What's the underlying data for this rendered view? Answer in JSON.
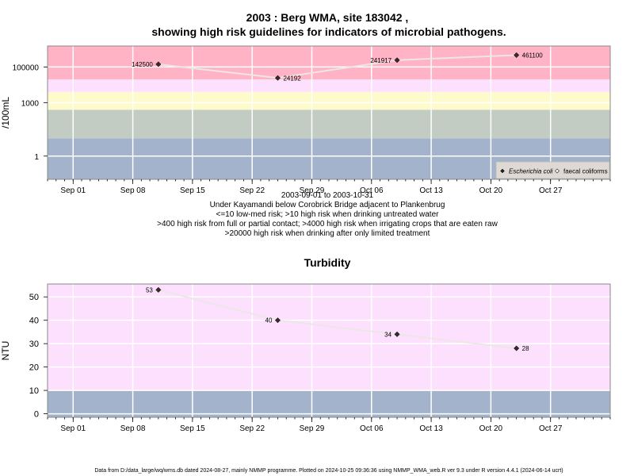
{
  "chart_data": [
    {
      "type": "line",
      "title_line1": "2003 : Berg WMA, site 183042 ,",
      "title_line2": "showing high risk guidelines for indicators of microbial pathogens.",
      "ylabel": "/100mL",
      "y_scale": "log",
      "y_ticks": [
        {
          "value": 1,
          "label": "1"
        },
        {
          "value": 1000,
          "label": "1000"
        },
        {
          "value": 100000,
          "label": "100000"
        }
      ],
      "x_range": [
        "2003-08-29",
        "2003-11-03"
      ],
      "x_ticks": [
        {
          "date": "2003-09-01",
          "label": "Sep 01"
        },
        {
          "date": "2003-09-08",
          "label": "Sep 08"
        },
        {
          "date": "2003-09-15",
          "label": "Sep 15"
        },
        {
          "date": "2003-09-22",
          "label": "Sep 22"
        },
        {
          "date": "2003-09-29",
          "label": "Sep 29"
        },
        {
          "date": "2003-10-06",
          "label": "Oct 06"
        },
        {
          "date": "2003-10-13",
          "label": "Oct 13"
        },
        {
          "date": "2003-10-20",
          "label": "Oct 20"
        },
        {
          "date": "2003-10-27",
          "label": "Oct 27"
        }
      ],
      "bands": [
        {
          "from": 0.05,
          "to": 10,
          "color": "#a3b3cc"
        },
        {
          "from": 10,
          "to": 400,
          "color": "#c2ccc3"
        },
        {
          "from": 400,
          "to": 4000,
          "color": "#fdfbcc"
        },
        {
          "from": 4000,
          "to": 20000,
          "color": "#fde0fd"
        },
        {
          "from": 20000,
          "to": 1500000,
          "color": "#ffb3c4"
        }
      ],
      "series": [
        {
          "name": "Escherichia coli",
          "points": [
            {
              "date": "2003-09-11",
              "value": 142500,
              "label": "142500"
            },
            {
              "date": "2003-09-25",
              "value": 24192,
              "label": "24192"
            },
            {
              "date": "2003-10-09",
              "value": 241917,
              "label": "241917"
            },
            {
              "date": "2003-10-23",
              "value": 461100,
              "label": "461100"
            }
          ]
        }
      ],
      "legend": {
        "position": "bottom-right",
        "items": [
          {
            "label": "Escherichia coli",
            "marker": "filled-diamond"
          },
          {
            "label": "faecal coliforms",
            "marker": "open-diamond"
          }
        ]
      },
      "subtitle_lines": [
        "2003-09-01 to 2003-10-31",
        "Under Kayamandi below Corobrick Bridge adjacent to Plankenbrug",
        "<=10 low-med risk; >10 high risk when drinking untreated water",
        ">400 high risk from full or partial contact; >4000 high risk when irrigating crops that are eaten raw",
        ">20000 high risk when drinking after only limited treatment"
      ]
    },
    {
      "type": "line",
      "title": "Turbidity",
      "ylabel": "NTU",
      "y_scale": "linear",
      "ylim": [
        -1.5,
        55.5
      ],
      "y_ticks": [
        0,
        10,
        20,
        30,
        40,
        50
      ],
      "x_range": [
        "2003-08-29",
        "2003-11-03"
      ],
      "x_ticks": [
        {
          "date": "2003-09-01",
          "label": "Sep 01"
        },
        {
          "date": "2003-09-08",
          "label": "Sep 08"
        },
        {
          "date": "2003-09-15",
          "label": "Sep 15"
        },
        {
          "date": "2003-09-22",
          "label": "Sep 22"
        },
        {
          "date": "2003-09-29",
          "label": "Sep 29"
        },
        {
          "date": "2003-10-06",
          "label": "Oct 06"
        },
        {
          "date": "2003-10-13",
          "label": "Oct 13"
        },
        {
          "date": "2003-10-20",
          "label": "Oct 20"
        },
        {
          "date": "2003-10-27",
          "label": "Oct 27"
        }
      ],
      "bands": [
        {
          "from": -1.5,
          "to": 10,
          "color": "#a3b3cc"
        },
        {
          "from": 10,
          "to": 55.5,
          "color": "#fde0fd"
        }
      ],
      "series": [
        {
          "points": [
            {
              "date": "2003-09-11",
              "value": 53,
              "label": "53"
            },
            {
              "date": "2003-09-25",
              "value": 40,
              "label": "40"
            },
            {
              "date": "2003-10-09",
              "value": 34,
              "label": "34"
            },
            {
              "date": "2003-10-23",
              "value": 28,
              "label": "28"
            }
          ]
        }
      ]
    }
  ],
  "footer": "Data from D:/data_large/wq/wms.db dated 2024-08-27, mainly NMMP programme. Plotted on 2024-10-25 09:36:36 using NMMP_WMA_web.R ver 9.3 under R version 4.4.1 (2024-06-14 ucrt)"
}
